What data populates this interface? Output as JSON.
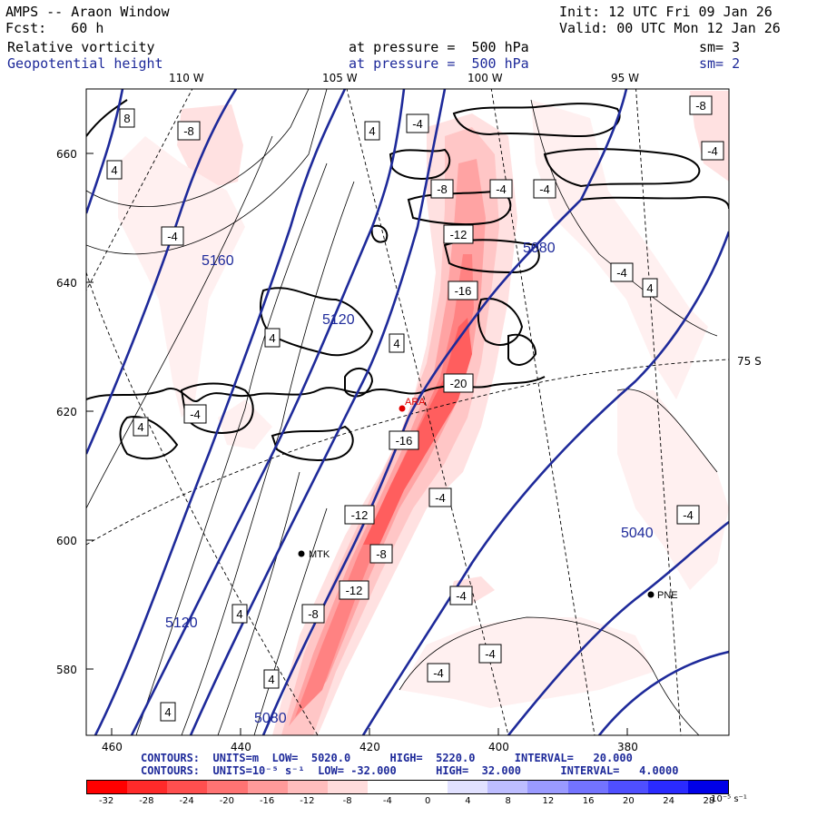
{
  "header": {
    "model": "AMPS -- Araon Window",
    "fcst": "Fcst:   60 h",
    "init": "Init: 12 UTC Fri 09 Jan 26",
    "valid": "Valid: 00 UTC Mon 12 Jan 26",
    "field1": "Relative vorticity",
    "field1_level": "at pressure =  500 hPa",
    "field1_sm": "sm= 3",
    "field2": "Geopotential height",
    "field2_level": "at pressure =  500 hPa",
    "field2_sm": "sm= 2"
  },
  "longitude_labels": [
    "110 W",
    "105 W",
    "100 W",
    "95 W"
  ],
  "latitude_label": "75 S",
  "y_ticks": [
    "660",
    "640",
    "620",
    "600",
    "580"
  ],
  "x_ticks": [
    "460",
    "440",
    "420",
    "400",
    "380"
  ],
  "stations": [
    {
      "name": "ARA",
      "color": "#e00000"
    },
    {
      "name": "MTK",
      "color": "#000000"
    },
    {
      "name": "PNE",
      "color": "#000000"
    }
  ],
  "height_labels": [
    "5160",
    "5120",
    "5080",
    "5040",
    "5120",
    "5080"
  ],
  "vort_labels": [
    "8",
    "-8",
    "4",
    "-4",
    "4",
    "-8",
    "-4",
    "-4",
    "-12",
    "-16",
    "-20",
    "-16",
    "-12",
    "-8",
    "-12",
    "-8",
    "-4",
    "-4",
    "-4",
    "-4",
    "4",
    "4",
    "4",
    "4",
    "-4",
    "-4",
    "4",
    "-8",
    "4",
    "-4",
    "4",
    "-4",
    "-4"
  ],
  "footer": {
    "line1": "CONTOURS:  UNITS=m  LOW=  5020.0      HIGH=  5220.0      INTERVAL=   20.000",
    "line2": "CONTOURS:  UNITS=10⁻⁵ s⁻¹  LOW= -32.000      HIGH=  32.000      INTERVAL=   4.0000"
  },
  "colorbar": {
    "labels": [
      "-32",
      "-28",
      "-24",
      "-20",
      "-16",
      "-12",
      "-8",
      "-4",
      "0",
      "4",
      "8",
      "12",
      "16",
      "20",
      "24",
      "28",
      "32"
    ],
    "unit": "10⁻⁵ s⁻¹",
    "colors": [
      "#ff0000",
      "#ff2a2a",
      "#ff4f4f",
      "#ff7373",
      "#ff9a9a",
      "#ffbdbd",
      "#ffdcdc",
      "#ffffff",
      "#ffffff",
      "#ffffff",
      "#e1e1ff",
      "#bdbdff",
      "#9a9aff",
      "#7373ff",
      "#4f4fff",
      "#2a2aff",
      "#0000e8"
    ]
  },
  "chart_data": {
    "type": "map",
    "title": "AMPS -- Araon Window",
    "fields": [
      "Relative vorticity at 500 hPa (shaded, 10⁻⁵ s⁻¹)",
      "Geopotential height at 500 hPa (contours, m)"
    ],
    "x_range": [
      465,
      368
    ],
    "y_range": [
      570,
      670
    ],
    "height_contours": {
      "low": 5020,
      "high": 5220,
      "interval": 20
    },
    "vorticity_contours": {
      "low": -32,
      "high": 32,
      "interval": 4
    }
  }
}
